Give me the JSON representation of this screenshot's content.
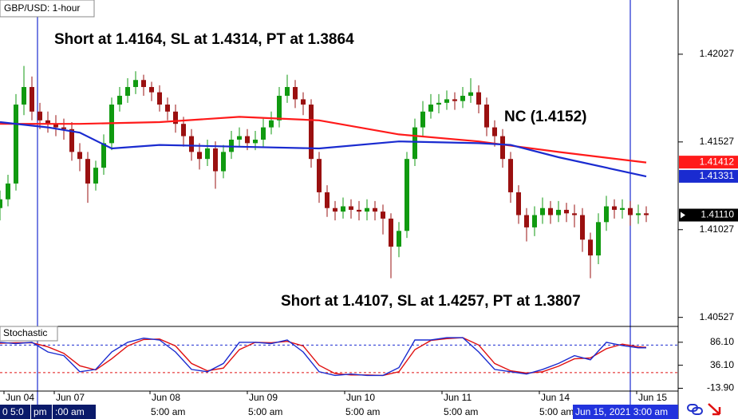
{
  "chart_data": [
    {
      "type": "candlestick",
      "title": "GBP/USD: 1-hour",
      "x": [
        0,
        2,
        4,
        6,
        8,
        10,
        12,
        14,
        16,
        18,
        20,
        22,
        24,
        26,
        28,
        30,
        32,
        34,
        36,
        38,
        40,
        42,
        44,
        46,
        48,
        50,
        52,
        54,
        56,
        58,
        60,
        62,
        64,
        66,
        68,
        70,
        72,
        74,
        76,
        78,
        80,
        82,
        84,
        86,
        88,
        90,
        92,
        94,
        96,
        98,
        100,
        102,
        104,
        106,
        108,
        110,
        112,
        114,
        116,
        118,
        120,
        122,
        124,
        126,
        128,
        130,
        132,
        134,
        136,
        138,
        140,
        142,
        144,
        146,
        148,
        150,
        152,
        154,
        156,
        158,
        160,
        162
      ],
      "open": [
        1.4115,
        1.412,
        1.4129,
        1.4174,
        1.4184,
        1.417,
        1.4165,
        1.4163,
        1.4161,
        1.416,
        1.4147,
        1.4143,
        1.4129,
        1.4138,
        1.4152,
        1.4174,
        1.4179,
        1.4184,
        1.4188,
        1.4184,
        1.4181,
        1.4174,
        1.417,
        1.4163,
        1.4156,
        1.4147,
        1.4143,
        1.4149,
        1.4136,
        1.4147,
        1.4154,
        1.4156,
        1.4152,
        1.4154,
        1.4161,
        1.4165,
        1.4179,
        1.4184,
        1.4177,
        1.4174,
        1.4143,
        1.4124,
        1.4115,
        1.4113,
        1.4116,
        1.4114,
        1.4113,
        1.4115,
        1.4113,
        1.4109,
        1.4093,
        1.4102,
        1.4143,
        1.4161,
        1.417,
        1.4174,
        1.4175,
        1.4177,
        1.4176,
        1.4179,
        1.4181,
        1.4174,
        1.4161,
        1.4156,
        1.4143,
        1.4124,
        1.4111,
        1.4104,
        1.4111,
        1.4115,
        1.4111,
        1.4114,
        1.4112,
        1.4111,
        1.4097,
        1.4088,
        1.4107,
        1.4116,
        1.4114,
        1.4115,
        1.4111,
        1.4112
      ],
      "high": [
        1.4125,
        1.4134,
        1.418,
        1.4196,
        1.419,
        1.4175,
        1.417,
        1.4168,
        1.4166,
        1.4164,
        1.4152,
        1.4147,
        1.4142,
        1.4157,
        1.4178,
        1.4184,
        1.4189,
        1.4193,
        1.4191,
        1.4187,
        1.4185,
        1.4178,
        1.4174,
        1.4167,
        1.416,
        1.4152,
        1.4154,
        1.4153,
        1.4151,
        1.4159,
        1.4161,
        1.416,
        1.4159,
        1.4166,
        1.417,
        1.4184,
        1.4191,
        1.4188,
        1.4181,
        1.4177,
        1.4147,
        1.4128,
        1.4119,
        1.4121,
        1.412,
        1.4119,
        1.412,
        1.4119,
        1.4117,
        1.4112,
        1.4107,
        1.4147,
        1.4166,
        1.4176,
        1.418,
        1.418,
        1.4182,
        1.4181,
        1.4184,
        1.4189,
        1.4185,
        1.4178,
        1.4165,
        1.416,
        1.4147,
        1.4128,
        1.4115,
        1.4116,
        1.4121,
        1.4119,
        1.4119,
        1.4118,
        1.4117,
        1.4115,
        1.4101,
        1.4112,
        1.4122,
        1.412,
        1.412,
        1.4119,
        1.4117,
        1.4116
      ],
      "low": [
        1.4108,
        1.4116,
        1.4125,
        1.4168,
        1.4165,
        1.416,
        1.4158,
        1.4156,
        1.4154,
        1.4142,
        1.4136,
        1.4118,
        1.4125,
        1.4134,
        1.4148,
        1.417,
        1.4175,
        1.418,
        1.4179,
        1.4176,
        1.417,
        1.4165,
        1.4158,
        1.415,
        1.4142,
        1.4137,
        1.4139,
        1.4126,
        1.4132,
        1.4143,
        1.415,
        1.4148,
        1.4148,
        1.415,
        1.4157,
        1.4161,
        1.4175,
        1.4172,
        1.4168,
        1.4138,
        1.4118,
        1.411,
        1.4108,
        1.4109,
        1.4109,
        1.4108,
        1.4108,
        1.4108,
        1.41,
        1.4075,
        1.4087,
        1.4098,
        1.4139,
        1.4156,
        1.4166,
        1.4169,
        1.4171,
        1.4171,
        1.4172,
        1.4175,
        1.4169,
        1.4156,
        1.415,
        1.4138,
        1.4118,
        1.4106,
        1.4096,
        1.4099,
        1.4106,
        1.4106,
        1.4107,
        1.4107,
        1.4104,
        1.409,
        1.4075,
        1.4083,
        1.4102,
        1.4109,
        1.4109,
        1.4105,
        1.4106,
        1.4107
      ],
      "close": [
        1.412,
        1.4129,
        1.4174,
        1.4184,
        1.417,
        1.4165,
        1.4163,
        1.4161,
        1.416,
        1.4147,
        1.4143,
        1.4129,
        1.4138,
        1.4152,
        1.4174,
        1.4179,
        1.4184,
        1.4188,
        1.4184,
        1.4181,
        1.4174,
        1.417,
        1.4163,
        1.4156,
        1.4147,
        1.4143,
        1.4149,
        1.4136,
        1.4147,
        1.4154,
        1.4156,
        1.4152,
        1.4154,
        1.4161,
        1.4165,
        1.4179,
        1.4184,
        1.4177,
        1.4174,
        1.4143,
        1.4124,
        1.4115,
        1.4113,
        1.4116,
        1.4114,
        1.4113,
        1.4115,
        1.4113,
        1.4109,
        1.4093,
        1.4102,
        1.4143,
        1.4161,
        1.417,
        1.4174,
        1.4175,
        1.4177,
        1.4176,
        1.4179,
        1.4181,
        1.4174,
        1.4161,
        1.4156,
        1.4143,
        1.4124,
        1.4111,
        1.4104,
        1.4111,
        1.4115,
        1.4111,
        1.4114,
        1.4112,
        1.4111,
        1.4097,
        1.4088,
        1.4107,
        1.4116,
        1.4114,
        1.4115,
        1.4111,
        1.4112,
        1.4111
      ],
      "up_color": "#109a10",
      "down_color": "#9a1010",
      "overlays": [
        {
          "color": "#ff1a1a",
          "x": [
            0,
            20,
            40,
            60,
            80,
            100,
            120,
            140,
            162
          ],
          "values": [
            1.4163,
            1.4163,
            1.4164,
            1.4167,
            1.4165,
            1.4157,
            1.4153,
            1.4147,
            1.4141
          ]
        },
        {
          "color": "#1a2bd0",
          "x": [
            0,
            12,
            20,
            28,
            40,
            60,
            80,
            100,
            120,
            128,
            140,
            162
          ],
          "values": [
            1.4164,
            1.4161,
            1.4158,
            1.4149,
            1.4151,
            1.415,
            1.4149,
            1.4153,
            1.4152,
            1.4151,
            1.4144,
            1.4133
          ]
        }
      ],
      "price_labels": [
        {
          "value": 1.41412,
          "color": "#ff1a1a"
        },
        {
          "value": 1.41331,
          "color": "#1a2bd0"
        },
        {
          "value": 1.4111,
          "label": "1.41110",
          "color": "#000000"
        }
      ],
      "xlim": [
        0,
        170
      ],
      "ylim": [
        1.4048,
        1.42336
      ],
      "yticks": [
        1.42027,
        1.41527,
        1.41027,
        1.40527
      ],
      "vlines": [
        9.4,
        158
      ],
      "annotations": [
        "Short at 1.4164, SL at 1.4314, PT at 1.3864",
        "NC (1.4152)",
        "Short at 1.4107, SL at 1.4257, PT at 1.3807"
      ]
    },
    {
      "type": "line",
      "title": "Stochastic",
      "series": [
        {
          "color": "#e01010",
          "x": [
            0,
            4,
            8,
            12,
            16,
            20,
            24,
            28,
            32,
            36,
            40,
            44,
            48,
            52,
            56,
            60,
            64,
            68,
            72,
            76,
            80,
            84,
            88,
            92,
            96,
            100,
            104,
            108,
            112,
            116,
            120,
            124,
            128,
            132,
            136,
            140,
            144,
            148,
            152,
            156,
            160,
            162
          ],
          "values": [
            84,
            85,
            85,
            76,
            62,
            35,
            26,
            50,
            78,
            92,
            93,
            78,
            40,
            24,
            30,
            70,
            86,
            85,
            88,
            78,
            36,
            18,
            15,
            15,
            14,
            22,
            70,
            90,
            94,
            96,
            80,
            40,
            24,
            19,
            22,
            34,
            50,
            52,
            72,
            82,
            76,
            75
          ]
        },
        {
          "color": "#1a2bd0",
          "x": [
            0,
            4,
            8,
            12,
            16,
            20,
            24,
            28,
            32,
            36,
            40,
            44,
            48,
            52,
            56,
            60,
            64,
            68,
            72,
            76,
            80,
            84,
            88,
            92,
            96,
            100,
            104,
            108,
            112,
            116,
            120,
            124,
            128,
            132,
            136,
            140,
            144,
            148,
            152,
            156,
            160,
            162
          ],
          "values": [
            86,
            83,
            86,
            65,
            57,
            22,
            27,
            65,
            86,
            95,
            91,
            65,
            27,
            22,
            40,
            86,
            86,
            83,
            91,
            65,
            22,
            14,
            17,
            14,
            14,
            31,
            91,
            91,
            96,
            96,
            65,
            27,
            22,
            17,
            27,
            40,
            57,
            48,
            86,
            79,
            74,
            74
          ]
        }
      ],
      "levels": [
        {
          "value": 80,
          "color": "#1a2bd0"
        },
        {
          "value": 20,
          "color": "#e01010"
        }
      ],
      "xlim": [
        0,
        170
      ],
      "ylim": [
        -20,
        117
      ],
      "yticks": [
        {
          "value": 86.1,
          "label": "86.10"
        },
        {
          "value": 36.1,
          "label": "36.10"
        },
        {
          "value": -13.9,
          "label": "-13.90"
        }
      ],
      "xticks": [
        {
          "value": 1,
          "label": "Jun 04"
        },
        {
          "value": 13.6,
          "label": "Jun 07"
        },
        {
          "value": 37.6,
          "label": "Jun 08"
        },
        {
          "value": 62,
          "label": "Jun 09"
        },
        {
          "value": 86.4,
          "label": "Jun 10"
        },
        {
          "value": 110.8,
          "label": "Jun 11"
        },
        {
          "value": 135.2,
          "label": "Jun 14"
        },
        {
          "value": 159.6,
          "label": "Jun 15"
        }
      ],
      "time_labels": [
        "0 5:0",
        "pm",
        ":00 am",
        "5:00 am",
        "5:00 am",
        "5:00 am",
        "5:00 am",
        "5:00 am",
        "Jun 15, 2021 3:00 am"
      ]
    }
  ]
}
